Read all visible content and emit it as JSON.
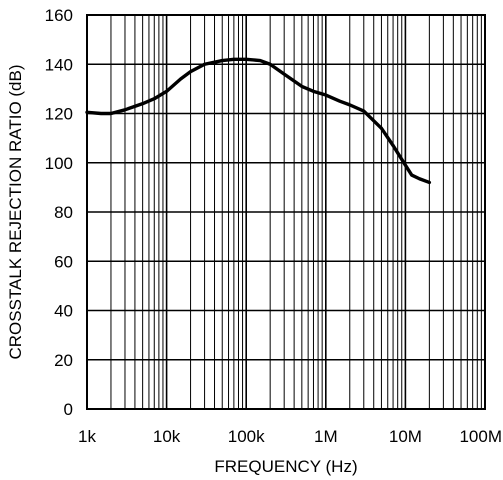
{
  "chart_data": {
    "type": "line",
    "title": "",
    "xlabel": "FREQUENCY (Hz)",
    "ylabel": "CROSSTALK REJECTION RATIO (dB)",
    "xscale": "log",
    "xlim": [
      1000,
      100000000
    ],
    "ylim": [
      0,
      160
    ],
    "grid": true,
    "x_ticks": [
      {
        "value": 1000,
        "label": "1k"
      },
      {
        "value": 10000,
        "label": "10k"
      },
      {
        "value": 100000,
        "label": "100k"
      },
      {
        "value": 1000000,
        "label": "1M"
      },
      {
        "value": 10000000,
        "label": "10M"
      },
      {
        "value": 100000000,
        "label": "100M"
      }
    ],
    "y_ticks": [
      {
        "value": 0,
        "label": "0"
      },
      {
        "value": 20,
        "label": "20"
      },
      {
        "value": 40,
        "label": "40"
      },
      {
        "value": 60,
        "label": "60"
      },
      {
        "value": 80,
        "label": "80"
      },
      {
        "value": 100,
        "label": "100"
      },
      {
        "value": 120,
        "label": "120"
      },
      {
        "value": 140,
        "label": "140"
      },
      {
        "value": 160,
        "label": "160"
      }
    ],
    "series": [
      {
        "color": "#000000",
        "x": [
          1000,
          1500,
          2000,
          3000,
          5000,
          7000,
          10000,
          15000,
          20000,
          30000,
          50000,
          70000,
          100000,
          150000,
          200000,
          300000,
          500000,
          700000,
          1000000,
          1500000,
          2000000,
          3000000,
          5000000,
          7000000,
          10000000,
          12000000,
          15000000,
          20000000
        ],
        "y": [
          120.5,
          120,
          120,
          121.5,
          124,
          126,
          129,
          134,
          137,
          140,
          141.5,
          142,
          142,
          141.5,
          140,
          136,
          131,
          129,
          127.5,
          125,
          123.5,
          121,
          114,
          107,
          99,
          95,
          93.5,
          92
        ]
      }
    ]
  }
}
